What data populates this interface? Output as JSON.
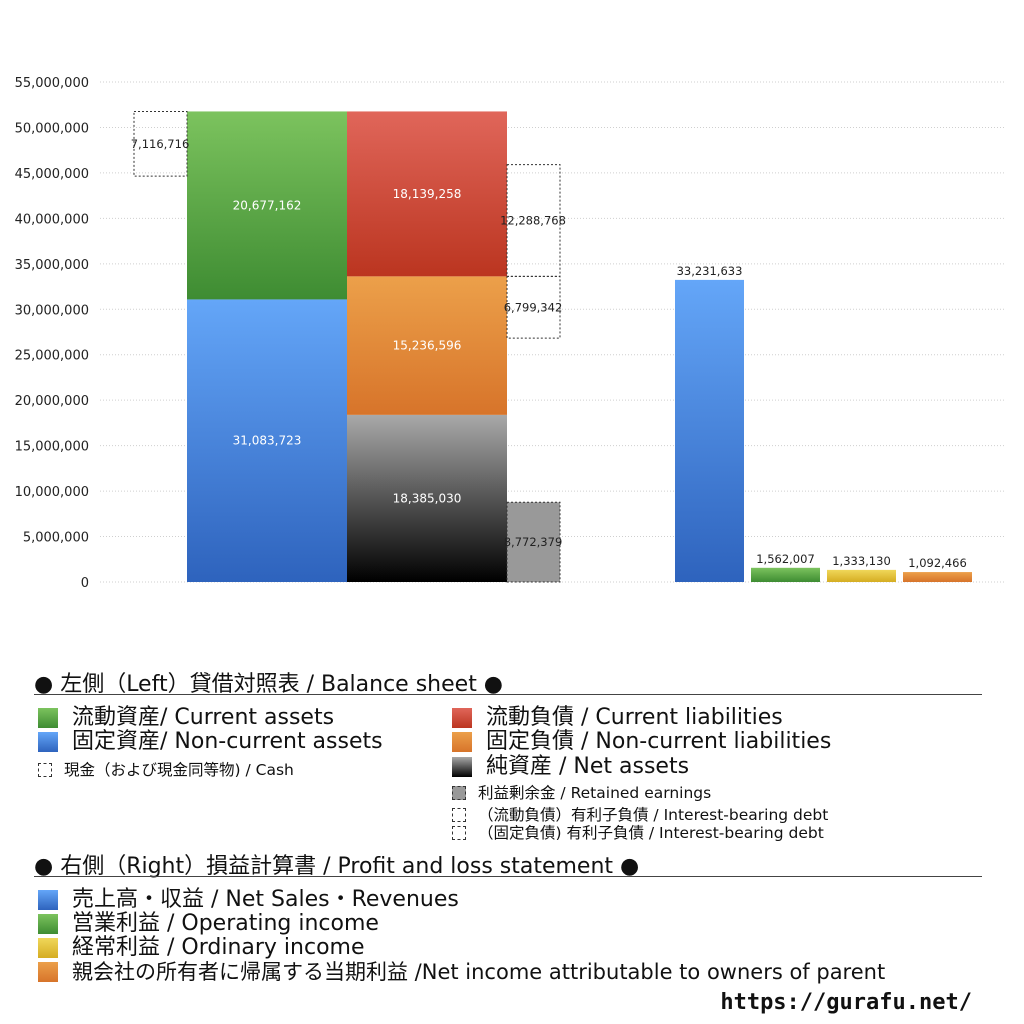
{
  "chart_data": {
    "type": "bar",
    "y_axis": {
      "min": 0,
      "max": 55000000,
      "step": 5000000,
      "tick_labels": [
        "0",
        "5,000,000",
        "10,000,000",
        "15,000,000",
        "20,000,000",
        "25,000,000",
        "30,000,000",
        "35,000,000",
        "40,000,000",
        "45,000,000",
        "50,000,000",
        "55,000,000"
      ],
      "grid": true
    },
    "balance_sheet": {
      "cash": {
        "value": 7116716,
        "label": "7,116,716"
      },
      "assets": [
        {
          "key": "noncurrent_assets",
          "value": 31083723,
          "label": "31,083,723",
          "color": "#3f7fd9"
        },
        {
          "key": "current_assets",
          "value": 20677162,
          "label": "20,677,162",
          "color": "#56a843"
        }
      ],
      "liabilities_equity": [
        {
          "key": "net_assets",
          "value": 18385030,
          "label": "18,385,030",
          "color": "#444444"
        },
        {
          "key": "noncurrent_liabilities",
          "value": 15236596,
          "label": "15,236,596",
          "color": "#e08a33"
        },
        {
          "key": "current_liabilities",
          "value": 18139258,
          "label": "18,139,258",
          "color": "#cc3f2b"
        }
      ],
      "retained_earnings": {
        "value": 8772379,
        "label": "8,772,379",
        "color": "#999999"
      },
      "noncurrent_interest_bearing_debt": {
        "value": 6799342,
        "label": "6,799,342"
      },
      "current_interest_bearing_debt": {
        "value": 12288768,
        "label": "12,288,768"
      }
    },
    "profit_and_loss": [
      {
        "key": "net_sales",
        "value": 33231633,
        "label": "33,231,633",
        "color": "#4a8ae0"
      },
      {
        "key": "operating_income",
        "value": 1562007,
        "label": "1,562,007",
        "color": "#56a843"
      },
      {
        "key": "ordinary_income",
        "value": 1333130,
        "label": "1,333,130",
        "color": "#e6c43a"
      },
      {
        "key": "net_income_parent",
        "value": 1092466,
        "label": "1,092,466",
        "color": "#e08a33"
      }
    ]
  },
  "legend": {
    "left_heading": "● 左側（Left）貸借対照表 / Balance sheet ●",
    "current_assets": "流動資産/ Current assets",
    "noncurrent_assets": "固定資産/ Non-current assets",
    "cash": "現金（および現金同等物) / Cash",
    "current_liabilities": "流動負債 /  Current liabilities",
    "noncurrent_liabilities": "固定負債 / Non-current liabilities",
    "net_assets": "純資産 / Net assets",
    "retained_earnings": "利益剰余金 / Retained earnings",
    "current_ibd": "（流動負債）有利子負債 / Interest-bearing debt",
    "noncurrent_ibd": "（固定負債) 有利子負債 / Interest-bearing debt",
    "right_heading": "● 右側（Right）損益計算書 / Profit and loss statement ●",
    "net_sales": "売上高・収益 / Net Sales・Revenues",
    "operating_income": "営業利益 / Operating income",
    "ordinary_income": "経常利益 / Ordinary income",
    "net_income_parent": "親会社の所有者に帰属する当期利益 /Net income attributable to owners of parent"
  },
  "url": "https://gurafu.net/"
}
